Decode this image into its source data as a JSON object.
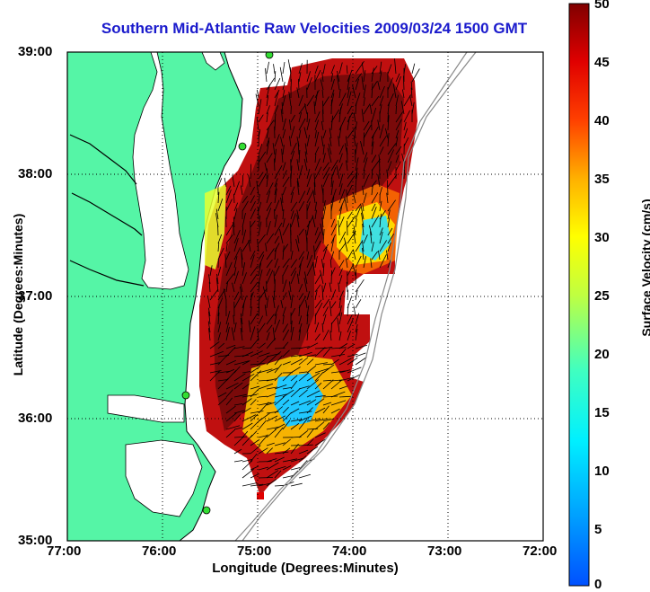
{
  "title": "Southern Mid-Atlantic Raw Velocities 2009/03/24 1500 GMT",
  "xlabel": "Longitude (Degrees:Minutes)",
  "ylabel": "Latitude (Degrees:Minutes)",
  "colorbar": {
    "label": "Surface Velocity (cm/s)",
    "ticks": [
      "0",
      "5",
      "10",
      "15",
      "20",
      "25",
      "30",
      "35",
      "40",
      "45",
      "50"
    ],
    "range": [
      0,
      50
    ]
  },
  "axes": {
    "x_ticks": [
      "77:00",
      "76:00",
      "75:00",
      "74:00",
      "73:00",
      "72:00"
    ],
    "y_ticks": [
      "39:00",
      "38:00",
      "37:00",
      "36:00",
      "35:00"
    ],
    "x_range": [
      -77,
      -72
    ],
    "y_range": [
      35,
      39
    ],
    "grid": true
  },
  "colors": {
    "land": "#55f5a6",
    "water": "#ffffff",
    "title": "#1a1acc"
  }
}
